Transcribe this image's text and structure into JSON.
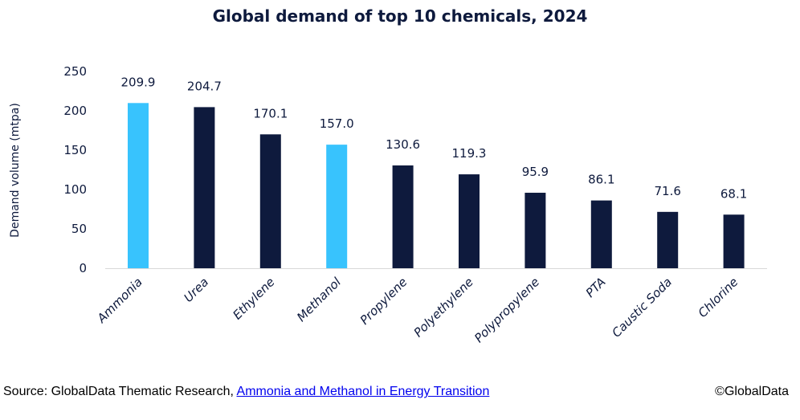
{
  "chart_data": {
    "type": "bar",
    "title": "Global demand of top 10 chemicals, 2024",
    "xlabel": "",
    "ylabel": "Demand volume (mtpa)",
    "ylim": [
      0,
      250
    ],
    "yticks": [
      0,
      50,
      100,
      150,
      200,
      250
    ],
    "grid": false,
    "categories": [
      "Ammonia",
      "Urea",
      "Ethylene",
      "Methanol",
      "Propylene",
      "Polyethylene",
      "Polypropylene",
      "PTA",
      "Caustic Soda",
      "Chlorine"
    ],
    "values": [
      209.9,
      204.7,
      170.1,
      157.0,
      130.6,
      119.3,
      95.9,
      86.1,
      71.6,
      68.1
    ],
    "data_labels": [
      "209.9",
      "204.7",
      "170.1",
      "157.0",
      "130.6",
      "119.3",
      "95.9",
      "86.1",
      "71.6",
      "68.1"
    ],
    "highlighted": [
      "Ammonia",
      "Methanol"
    ],
    "colors": {
      "default": "#0e1a3d",
      "highlight": "#38c3fd",
      "text": "#0e1a3d",
      "axis": "#d9d9d9"
    }
  },
  "footer": {
    "source_prefix": "Source: GlobalData Thematic Research, ",
    "source_link": "Ammonia and Methanol in Energy Transition",
    "copyright": "©GlobalData"
  }
}
